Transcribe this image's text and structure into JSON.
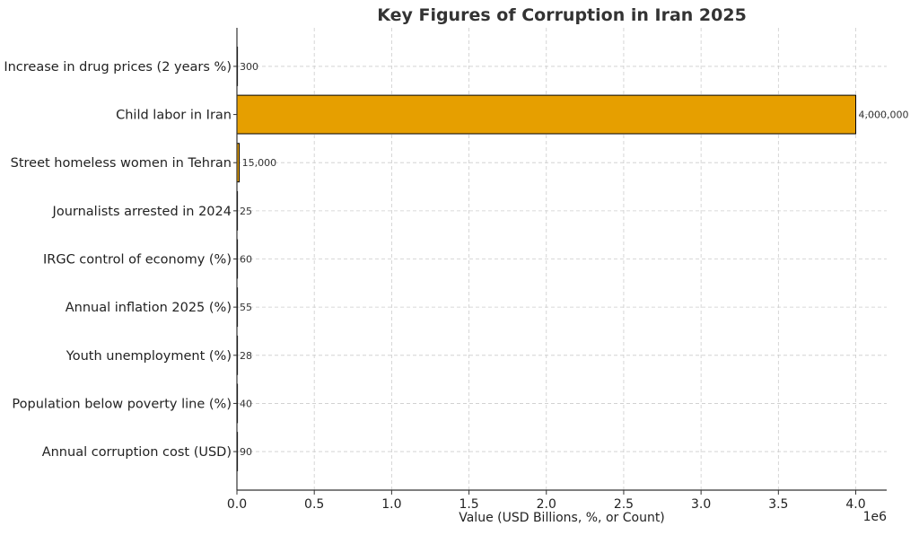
{
  "chart_data": {
    "type": "bar",
    "orientation": "horizontal",
    "title": "Key Figures of Corruption in Iran 2025",
    "xlabel": "Value (USD Billions, %, or Count)",
    "ylabel": "",
    "x_scale_note": "1e6",
    "xlim": [
      0,
      4200000
    ],
    "grid": true,
    "bar_color": "#E69F00",
    "bar_edge_color": "#000000",
    "categories": [
      "Annual corruption cost (USD)",
      "Population below poverty line (%)",
      "Youth unemployment (%)",
      "Annual inflation 2025 (%)",
      "IRGC control of economy (%)",
      "Journalists arrested in 2024",
      "Street homeless women in Tehran",
      "Child labor in Iran",
      "Increase in drug prices (2 years %)"
    ],
    "values": [
      90,
      40,
      28,
      55,
      60,
      25,
      15000,
      4000000,
      300
    ],
    "value_labels": [
      "90",
      "40",
      "28",
      "55",
      "60",
      "25",
      "15,000",
      "4,000,000",
      "300"
    ],
    "x_ticks": [
      0,
      500000,
      1000000,
      1500000,
      2000000,
      2500000,
      3000000,
      3500000,
      4000000
    ],
    "x_tick_labels": [
      "0.0",
      "0.5",
      "1.0",
      "1.5",
      "2.0",
      "2.5",
      "3.0",
      "3.5",
      "4.0"
    ]
  }
}
